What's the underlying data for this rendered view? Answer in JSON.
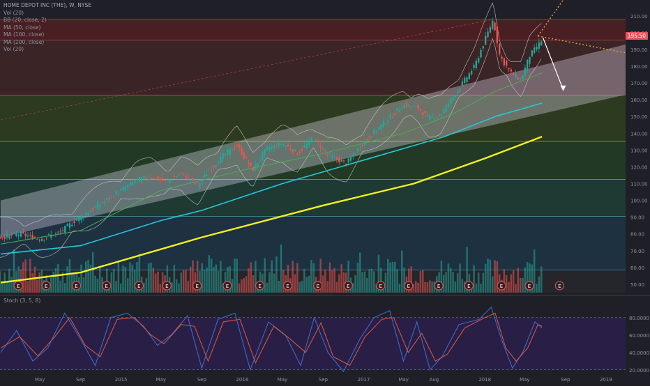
{
  "header": {
    "title": "HOME DEPOT INC (THE), W, NYSE",
    "indicators": [
      "Vol (20)",
      "BB (20, close, 2)",
      "MA (50, close)",
      "MA (100, close)",
      "MA (200, close)",
      "Vol (20)"
    ],
    "stoch_label": "Stoch (3, 5, 8)",
    "last_price": "195.50"
  },
  "colors": {
    "background": "#1f2027",
    "up": "#26a69a",
    "down": "#ef5350",
    "ma50": "#4caf50",
    "ma100": "#26c6da",
    "ma200": "#f4f21f",
    "bands": "#c9c9c9",
    "channel": "#e6dcf0",
    "stoch_k": "#3f6fd6",
    "stoch_d": "#e05a3f",
    "stoch_bg": "#2a1f4a",
    "accent": "#e8545a"
  },
  "chart_data": {
    "type": "candlestick",
    "series_price": "weekly",
    "ylim": [
      45,
      212
    ],
    "yticks": [
      210,
      200,
      190,
      180,
      170,
      160,
      150,
      140,
      130,
      120,
      110,
      100,
      90,
      80,
      70,
      60,
      50
    ],
    "ytick_labels": [
      "210.00",
      "200.00",
      "190.00",
      "180.00",
      "170.00",
      "160.00",
      "150.00",
      "140.00",
      "130.00",
      "120.00",
      "110.00",
      "100.00",
      "90.00",
      "80.00",
      "70.00",
      "60.00",
      "50.00"
    ],
    "xticks": [
      "May",
      "Sep",
      "2015",
      "May",
      "Sep",
      "2016",
      "May",
      "Sep",
      "2017",
      "May",
      "Aug",
      "2018",
      "May",
      "Sep",
      "2019"
    ],
    "xtick_dates": [
      "2014-05-01",
      "2014-09-01",
      "2015-01-01",
      "2015-05-01",
      "2015-09-01",
      "2016-01-01",
      "2016-05-01",
      "2016-09-01",
      "2017-01-01",
      "2017-05-01",
      "2017-08-01",
      "2018-01-01",
      "2018-05-01",
      "2018-09-01",
      "2019-01-01"
    ],
    "x_range": [
      "2014-01-01",
      "2019-03-01"
    ],
    "last_date": "2018-06-22",
    "levels": [
      208,
      195.5,
      162.8,
      135.2,
      112.5,
      90.5,
      58.5
    ],
    "zone_colors": [
      "#4a1f24",
      "#3a2426",
      "#2c3a1f",
      "#223a25",
      "#1e3a32",
      "#1d3140"
    ],
    "price_path": [
      [
        "2014-01-03",
        78
      ],
      [
        "2014-03-01",
        80
      ],
      [
        "2014-05-01",
        77
      ],
      [
        "2014-07-01",
        81
      ],
      [
        "2014-08-15",
        88
      ],
      [
        "2014-09-15",
        92
      ],
      [
        "2014-11-01",
        98
      ],
      [
        "2014-12-15",
        104
      ],
      [
        "2015-02-15",
        112
      ],
      [
        "2015-04-01",
        114
      ],
      [
        "2015-05-15",
        111
      ],
      [
        "2015-07-01",
        116
      ],
      [
        "2015-08-20",
        109
      ],
      [
        "2015-09-15",
        116
      ],
      [
        "2015-11-01",
        126
      ],
      [
        "2015-12-15",
        133
      ],
      [
        "2016-02-01",
        118
      ],
      [
        "2016-03-15",
        131
      ],
      [
        "2016-05-01",
        134
      ],
      [
        "2016-06-15",
        128
      ],
      [
        "2016-08-01",
        137
      ],
      [
        "2016-09-15",
        127
      ],
      [
        "2016-11-10",
        122
      ],
      [
        "2017-01-01",
        135
      ],
      [
        "2017-03-01",
        146
      ],
      [
        "2017-05-01",
        157
      ],
      [
        "2017-06-15",
        155
      ],
      [
        "2017-07-15",
        149
      ],
      [
        "2017-08-20",
        151
      ],
      [
        "2017-10-01",
        163
      ],
      [
        "2017-12-01",
        180
      ],
      [
        "2018-01-26",
        208
      ],
      [
        "2018-02-15",
        186
      ],
      [
        "2018-03-20",
        176
      ],
      [
        "2018-04-20",
        172
      ],
      [
        "2018-05-15",
        186
      ],
      [
        "2018-06-22",
        195.5
      ]
    ],
    "ma50_path": [
      [
        "2014-01-03",
        74
      ],
      [
        "2014-09-01",
        82
      ],
      [
        "2015-05-01",
        106
      ],
      [
        "2016-01-01",
        118
      ],
      [
        "2016-09-01",
        128
      ],
      [
        "2017-05-01",
        140
      ],
      [
        "2017-10-01",
        152
      ],
      [
        "2018-02-01",
        165
      ],
      [
        "2018-06-22",
        176
      ]
    ],
    "ma100_path": [
      [
        "2014-01-03",
        68
      ],
      [
        "2014-09-01",
        73
      ],
      [
        "2015-05-01",
        88
      ],
      [
        "2015-09-01",
        94
      ],
      [
        "2016-05-01",
        110
      ],
      [
        "2017-01-01",
        124
      ],
      [
        "2017-09-01",
        138
      ],
      [
        "2018-02-01",
        150
      ],
      [
        "2018-06-22",
        158
      ]
    ],
    "ma200_path": [
      [
        "2014-01-03",
        51
      ],
      [
        "2014-09-01",
        57
      ],
      [
        "2015-09-01",
        78
      ],
      [
        "2016-09-01",
        97
      ],
      [
        "2017-06-01",
        110
      ],
      [
        "2018-01-01",
        125
      ],
      [
        "2018-06-22",
        138
      ]
    ],
    "channel": {
      "lower": [
        [
          "2014-01-03",
          78
        ],
        [
          "2019-03-01",
          163
        ]
      ],
      "upper": [
        [
          "2014-01-03",
          100
        ],
        [
          "2019-03-01",
          193
        ]
      ]
    },
    "earnings_dates": [
      "2014-02-25",
      "2014-05-20",
      "2014-08-19",
      "2014-11-18",
      "2015-02-24",
      "2015-05-19",
      "2015-08-18",
      "2015-11-17",
      "2016-02-23",
      "2016-05-17",
      "2016-08-16",
      "2016-11-15",
      "2017-02-21",
      "2017-05-16",
      "2017-08-15",
      "2017-11-14",
      "2018-02-20",
      "2018-05-15",
      "2018-08-14"
    ],
    "stoch": {
      "ylim": [
        15,
        95
      ],
      "levels": [
        80,
        20
      ],
      "ticks": [
        80,
        60,
        40,
        20
      ],
      "tick_labels": [
        "80.0000",
        "60.0000",
        "40.0000",
        "20.0000"
      ],
      "k_path": [
        [
          "2014-01-03",
          40
        ],
        [
          "2014-02-20",
          65
        ],
        [
          "2014-04-10",
          30
        ],
        [
          "2014-05-25",
          45
        ],
        [
          "2014-07-15",
          85
        ],
        [
          "2014-09-01",
          55
        ],
        [
          "2014-10-15",
          25
        ],
        [
          "2014-12-01",
          80
        ],
        [
          "2015-01-20",
          85
        ],
        [
          "2015-03-10",
          70
        ],
        [
          "2015-04-20",
          48
        ],
        [
          "2015-06-01",
          60
        ],
        [
          "2015-07-20",
          82
        ],
        [
          "2015-09-01",
          22
        ],
        [
          "2015-10-20",
          78
        ],
        [
          "2015-12-10",
          85
        ],
        [
          "2016-01-25",
          20
        ],
        [
          "2016-03-20",
          75
        ],
        [
          "2016-05-10",
          60
        ],
        [
          "2016-06-25",
          25
        ],
        [
          "2016-08-05",
          80
        ],
        [
          "2016-09-15",
          40
        ],
        [
          "2016-11-01",
          18
        ],
        [
          "2016-12-20",
          55
        ],
        [
          "2017-02-01",
          80
        ],
        [
          "2017-03-20",
          88
        ],
        [
          "2017-05-01",
          30
        ],
        [
          "2017-06-10",
          75
        ],
        [
          "2017-07-20",
          20
        ],
        [
          "2017-08-25",
          35
        ],
        [
          "2017-10-15",
          72
        ],
        [
          "2017-12-15",
          78
        ],
        [
          "2018-01-20",
          92
        ],
        [
          "2018-02-20",
          55
        ],
        [
          "2018-03-25",
          22
        ],
        [
          "2018-04-25",
          40
        ],
        [
          "2018-06-01",
          75
        ],
        [
          "2018-06-22",
          68
        ]
      ],
      "d_path": [
        [
          "2014-01-03",
          45
        ],
        [
          "2014-03-01",
          58
        ],
        [
          "2014-04-25",
          36
        ],
        [
          "2014-06-15",
          58
        ],
        [
          "2014-07-30",
          80
        ],
        [
          "2014-09-15",
          48
        ],
        [
          "2014-10-30",
          35
        ],
        [
          "2014-12-20",
          78
        ],
        [
          "2015-02-10",
          80
        ],
        [
          "2015-04-01",
          60
        ],
        [
          "2015-05-10",
          50
        ],
        [
          "2015-07-01",
          72
        ],
        [
          "2015-08-10",
          70
        ],
        [
          "2015-09-20",
          30
        ],
        [
          "2015-11-05",
          75
        ],
        [
          "2015-12-25",
          78
        ],
        [
          "2016-02-10",
          28
        ],
        [
          "2016-04-05",
          70
        ],
        [
          "2016-05-25",
          55
        ],
        [
          "2016-07-10",
          40
        ],
        [
          "2016-08-25",
          74
        ],
        [
          "2016-10-01",
          35
        ],
        [
          "2016-11-20",
          25
        ],
        [
          "2017-01-05",
          58
        ],
        [
          "2017-02-25",
          78
        ],
        [
          "2017-04-01",
          80
        ],
        [
          "2017-05-15",
          40
        ],
        [
          "2017-06-25",
          62
        ],
        [
          "2017-08-05",
          30
        ],
        [
          "2017-09-10",
          38
        ],
        [
          "2017-11-01",
          68
        ],
        [
          "2018-01-01",
          80
        ],
        [
          "2018-02-01",
          85
        ],
        [
          "2018-03-05",
          45
        ],
        [
          "2018-04-05",
          30
        ],
        [
          "2018-05-10",
          45
        ],
        [
          "2018-06-10",
          72
        ],
        [
          "2018-06-22",
          70
        ]
      ]
    }
  }
}
